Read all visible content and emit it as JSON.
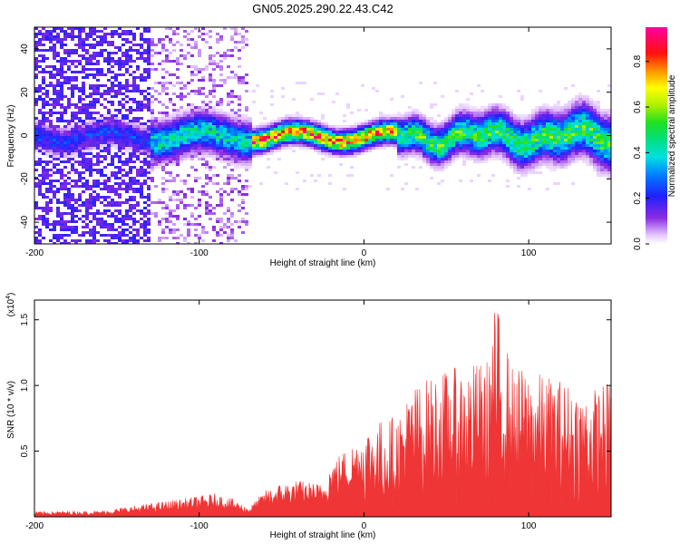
{
  "title": "GN05.2025.290.22.43.C42",
  "chart_data": [
    {
      "type": "heatmap",
      "title": "GN05.2025.290.22.43.C42",
      "xlabel": "Height of straight line (km)",
      "ylabel": "Frequency (Hz)",
      "xlim": [
        -200,
        150
      ],
      "ylim": [
        -50,
        50
      ],
      "xticks": [
        -200,
        -100,
        0,
        100
      ],
      "yticks": [
        -40,
        -20,
        0,
        20,
        40
      ],
      "colorbar": {
        "label": "Normalized spectral amplitude",
        "range": [
          0,
          0.95
        ],
        "ticks": [
          0.0,
          0.2,
          0.4,
          0.6,
          0.8
        ],
        "tick_labels": [
          "0.0",
          "0.2",
          "0.4",
          "0.6",
          "0.8"
        ],
        "colormap": "rainbow (white-violet-blue-cyan-green-yellow-red-magenta)"
      },
      "features": {
        "broadband_noise_x_range": [
          -200,
          -72
        ],
        "ridge_center_frequency_hz": 0,
        "ridge_peak_x_range": [
          -70,
          20
        ],
        "ridge_peak_amplitude": 0.9
      }
    },
    {
      "type": "area",
      "xlabel": "Height of straight line (km)",
      "ylabel": "SNR (10 * v/v)",
      "y_multiplier_label": "(x10",
      "y_multiplier_exp": "4",
      "xlim": [
        -200,
        150
      ],
      "ylim": [
        0,
        16500
      ],
      "xticks": [
        -200,
        -100,
        0,
        100
      ],
      "yticks": [
        5000,
        10000,
        15000
      ],
      "ytick_labels": [
        "0.5",
        "1.0",
        "1.5"
      ],
      "color": "#ef3535",
      "envelope": [
        {
          "x": -200,
          "y": 400
        },
        {
          "x": -160,
          "y": 450
        },
        {
          "x": -125,
          "y": 1100
        },
        {
          "x": -115,
          "y": 1300
        },
        {
          "x": -100,
          "y": 1600
        },
        {
          "x": -90,
          "y": 1800
        },
        {
          "x": -80,
          "y": 1400
        },
        {
          "x": -70,
          "y": 700
        },
        {
          "x": -60,
          "y": 2000
        },
        {
          "x": -50,
          "y": 2600
        },
        {
          "x": -40,
          "y": 2800
        },
        {
          "x": -25,
          "y": 2500
        },
        {
          "x": -20,
          "y": 4300
        },
        {
          "x": -10,
          "y": 5300
        },
        {
          "x": 5,
          "y": 7200
        },
        {
          "x": 20,
          "y": 7800
        },
        {
          "x": 30,
          "y": 10000
        },
        {
          "x": 45,
          "y": 11000
        },
        {
          "x": 60,
          "y": 11500
        },
        {
          "x": 75,
          "y": 12000
        },
        {
          "x": 80,
          "y": 16500
        },
        {
          "x": 90,
          "y": 11500
        },
        {
          "x": 105,
          "y": 11000
        },
        {
          "x": 120,
          "y": 10500
        },
        {
          "x": 135,
          "y": 9500
        },
        {
          "x": 150,
          "y": 10500
        }
      ]
    }
  ]
}
